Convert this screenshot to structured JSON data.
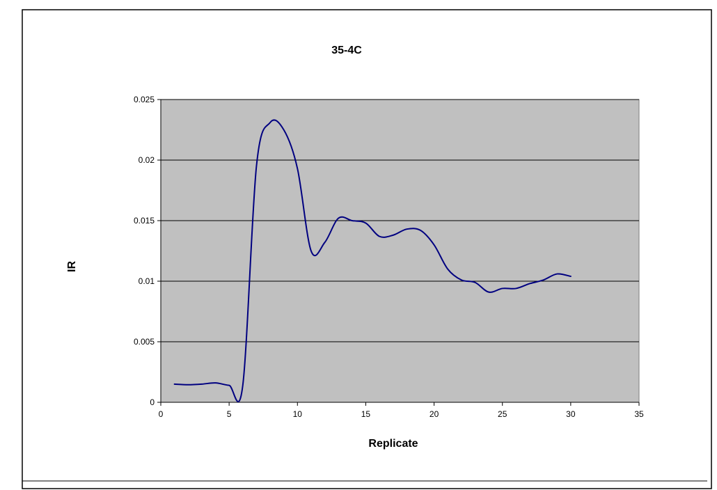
{
  "colors": {
    "plot_background": "#c0c0c0",
    "series_line": "#000080",
    "gridline": "#000000",
    "frame": "#000000",
    "page_background": "#ffffff"
  },
  "chart_data": {
    "type": "line",
    "title": "35-4C",
    "xlabel": "Replicate",
    "ylabel": "IR",
    "xlim": [
      0,
      35
    ],
    "ylim": [
      0,
      0.025
    ],
    "x_ticks": [
      "0",
      "5",
      "10",
      "15",
      "20",
      "25",
      "30",
      "35"
    ],
    "y_ticks": [
      "0",
      "0.005",
      "0.01",
      "0.015",
      "0.02",
      "0.025"
    ],
    "grid": "horizontal major gridlines",
    "legend": "none",
    "smoothed": true,
    "series": [
      {
        "x": [
          1,
          2,
          3,
          4,
          5,
          6,
          7,
          8,
          9,
          10,
          11,
          12,
          13,
          14,
          15,
          16,
          17,
          18,
          19,
          20,
          21,
          22,
          23,
          24,
          25,
          26,
          27,
          28,
          29,
          30
        ],
        "values": [
          0.0015,
          0.00145,
          0.0015,
          0.0016,
          0.0014,
          0.0014,
          0.0195,
          0.0231,
          0.0225,
          0.0193,
          0.0125,
          0.0132,
          0.0152,
          0.015,
          0.0148,
          0.0137,
          0.0138,
          0.0143,
          0.0142,
          0.013,
          0.011,
          0.0101,
          0.0099,
          0.0091,
          0.0094,
          0.0094,
          0.0098,
          0.0101,
          0.0106,
          0.0104
        ]
      }
    ]
  }
}
